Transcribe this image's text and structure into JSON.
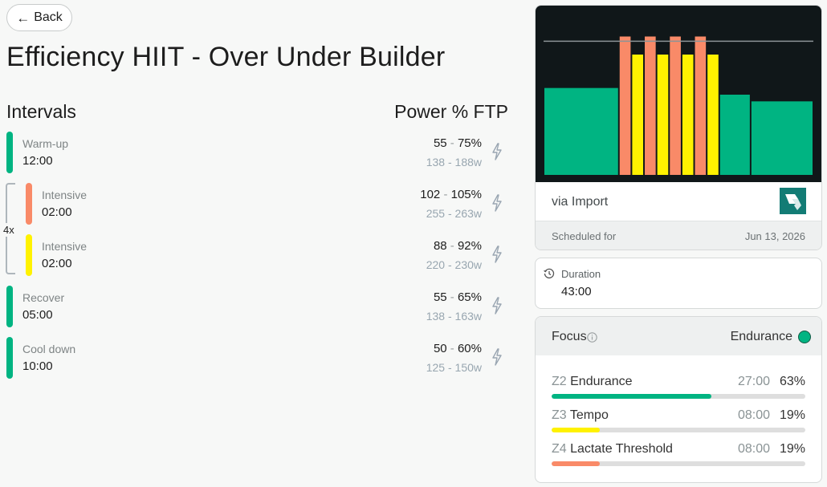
{
  "nav": {
    "back_label": "Back"
  },
  "workout": {
    "title": "Efficiency HIIT - Over Under Builder"
  },
  "headings": {
    "intervals": "Intervals",
    "power": "Power % FTP"
  },
  "repeat": {
    "label": "4x",
    "count": 4
  },
  "intervals": [
    {
      "name": "Warm-up",
      "duration": "12:00",
      "pct_low": "55",
      "pct_high": "75%",
      "w_low": "138",
      "w_high": "188w",
      "color": "#00b482"
    },
    {
      "name": "Intensive",
      "duration": "02:00",
      "pct_low": "102",
      "pct_high": "105%",
      "w_low": "255",
      "w_high": "263w",
      "color": "#f98a68"
    },
    {
      "name": "Intensive",
      "duration": "02:00",
      "pct_low": "88",
      "pct_high": "92%",
      "w_low": "220",
      "w_high": "230w",
      "color": "#fff200"
    },
    {
      "name": "Recover",
      "duration": "05:00",
      "pct_low": "55",
      "pct_high": "65%",
      "w_low": "138",
      "w_high": "163w",
      "color": "#00b482"
    },
    {
      "name": "Cool down",
      "duration": "10:00",
      "pct_low": "50",
      "pct_high": "60%",
      "w_low": "125",
      "w_high": "150w",
      "color": "#00b482"
    }
  ],
  "source": {
    "text": "via Import",
    "logo_icon": "import-logo-icon"
  },
  "schedule": {
    "label": "Scheduled for",
    "date": "Jun 13, 2026"
  },
  "duration": {
    "label": "Duration",
    "value": "43:00",
    "icon": "timer-icon"
  },
  "focus": {
    "label": "Focus",
    "value": "Endurance",
    "dot_color": "#00b482",
    "zones": [
      {
        "code": "Z2",
        "name": "Endurance",
        "time": "27:00",
        "pct": "63%",
        "fraction": 0.63,
        "color": "#00b482"
      },
      {
        "code": "Z3",
        "name": "Tempo",
        "time": "08:00",
        "pct": "19%",
        "fraction": 0.19,
        "color": "#fff200"
      },
      {
        "code": "Z4",
        "name": "Lactate Threshold",
        "time": "08:00",
        "pct": "19%",
        "fraction": 0.19,
        "color": "#f98a68"
      }
    ]
  },
  "chart_data": {
    "type": "bar",
    "ftp_line": 100,
    "ylim": [
      0,
      120
    ],
    "series": [
      {
        "values": [
          65,
          103.5,
          90,
          103.5,
          90,
          103.5,
          90,
          103.5,
          90,
          60,
          55
        ]
      }
    ],
    "durations_min": [
      12,
      2,
      2,
      2,
      2,
      2,
      2,
      2,
      2,
      5,
      10
    ],
    "colors": [
      "#00b482",
      "#f98a68",
      "#fff200",
      "#f98a68",
      "#fff200",
      "#f98a68",
      "#fff200",
      "#f98a68",
      "#fff200",
      "#00b482",
      "#00b482"
    ]
  }
}
